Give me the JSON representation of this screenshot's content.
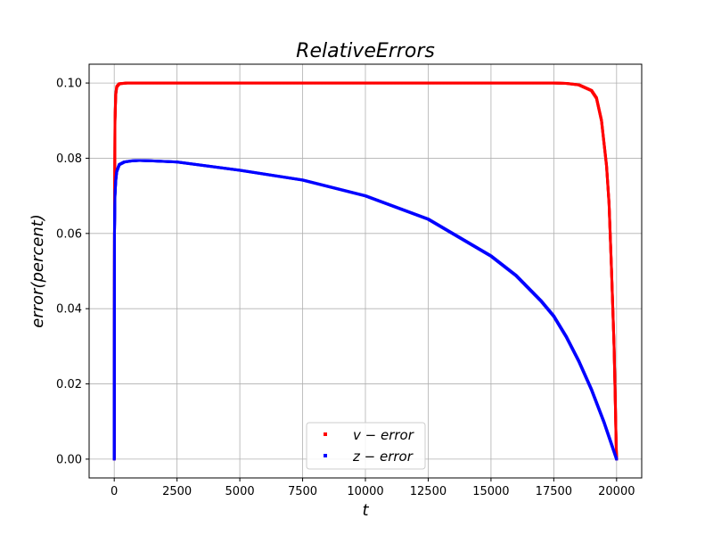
{
  "chart_data": {
    "type": "scatter",
    "title": "RelativeErrors",
    "xlabel": "t",
    "ylabel": "error(percent)",
    "xlim": [
      -1000,
      21000
    ],
    "ylim": [
      -0.005,
      0.105
    ],
    "xticks": [
      0,
      2500,
      5000,
      7500,
      10000,
      12500,
      15000,
      17500,
      20000
    ],
    "yticks": [
      0.0,
      0.02,
      0.04,
      0.06,
      0.08,
      0.1
    ],
    "xtick_labels": [
      "0",
      "2500",
      "5000",
      "7500",
      "10000",
      "12500",
      "15000",
      "17500",
      "20000"
    ],
    "ytick_labels": [
      "0.00",
      "0.02",
      "0.04",
      "0.06",
      "0.08",
      "0.10"
    ],
    "grid": true,
    "legend_position": "bottom-center",
    "series": [
      {
        "name": "v − error",
        "color": "#ff0000",
        "marker": "square",
        "x": [
          0,
          10,
          30,
          60,
          100,
          200,
          500,
          1000,
          5000,
          10000,
          15000,
          17500,
          18000,
          18500,
          19000,
          19200,
          19400,
          19600,
          19700,
          19800,
          19850,
          19900,
          19950,
          19980,
          20000
        ],
        "y": [
          0.0,
          0.06,
          0.09,
          0.097,
          0.099,
          0.0998,
          0.1,
          0.1,
          0.1,
          0.1,
          0.1,
          0.1,
          0.0999,
          0.0995,
          0.098,
          0.096,
          0.09,
          0.078,
          0.068,
          0.05,
          0.04,
          0.03,
          0.015,
          0.005,
          0.0
        ]
      },
      {
        "name": "z − error",
        "color": "#0000ff",
        "marker": "square",
        "x": [
          0,
          10,
          30,
          60,
          100,
          200,
          400,
          700,
          1000,
          1500,
          2500,
          5000,
          7500,
          10000,
          12500,
          15000,
          16000,
          17000,
          17500,
          18000,
          18500,
          19000,
          19500,
          20000
        ],
        "y": [
          0.0,
          0.06,
          0.07,
          0.074,
          0.0765,
          0.0783,
          0.079,
          0.0793,
          0.0794,
          0.0793,
          0.079,
          0.0768,
          0.0742,
          0.07,
          0.0638,
          0.054,
          0.0488,
          0.042,
          0.038,
          0.0325,
          0.026,
          0.0185,
          0.0098,
          0.0
        ]
      }
    ]
  }
}
